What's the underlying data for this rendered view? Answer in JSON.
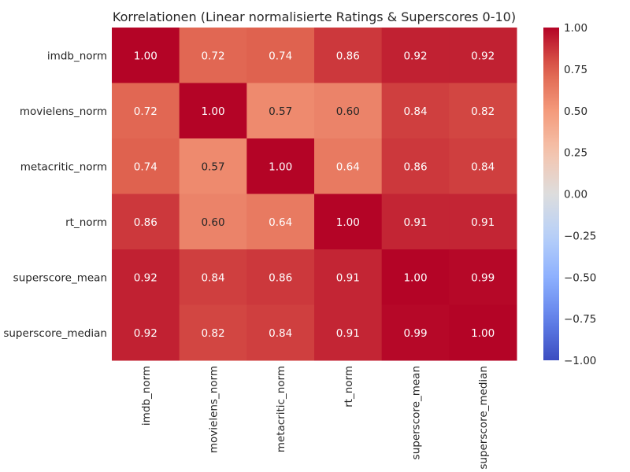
{
  "chart_data": {
    "type": "heatmap",
    "title": "Korrelationen (Linear normalisierte Ratings & Superscores 0-10)",
    "rows": [
      "imdb_norm",
      "movielens_norm",
      "metacritic_norm",
      "rt_norm",
      "superscore_mean",
      "superscore_median"
    ],
    "columns": [
      "imdb_norm",
      "movielens_norm",
      "metacritic_norm",
      "rt_norm",
      "superscore_mean",
      "superscore_median"
    ],
    "values": [
      [
        1.0,
        0.72,
        0.74,
        0.86,
        0.92,
        0.92
      ],
      [
        0.72,
        1.0,
        0.57,
        0.6,
        0.84,
        0.82
      ],
      [
        0.74,
        0.57,
        1.0,
        0.64,
        0.86,
        0.84
      ],
      [
        0.86,
        0.6,
        0.64,
        1.0,
        0.91,
        0.91
      ],
      [
        0.92,
        0.84,
        0.86,
        0.91,
        1.0,
        0.99
      ],
      [
        0.92,
        0.82,
        0.84,
        0.91,
        0.99,
        1.0
      ]
    ],
    "value_format": "0.00",
    "colormap": "coolwarm",
    "vmin": -1.0,
    "vmax": 1.0,
    "colorbar_ticks": [
      1.0,
      0.75,
      0.5,
      0.25,
      0.0,
      -0.25,
      -0.5,
      -0.75,
      -1.0
    ],
    "colorbar_tick_labels": [
      "1.00",
      "0.75",
      "0.50",
      "0.25",
      "0.00",
      "−0.25",
      "−0.50",
      "−0.75",
      "−1.00"
    ],
    "xlabel": "",
    "ylabel": "",
    "grid": false,
    "legend": "colorbar-right"
  }
}
